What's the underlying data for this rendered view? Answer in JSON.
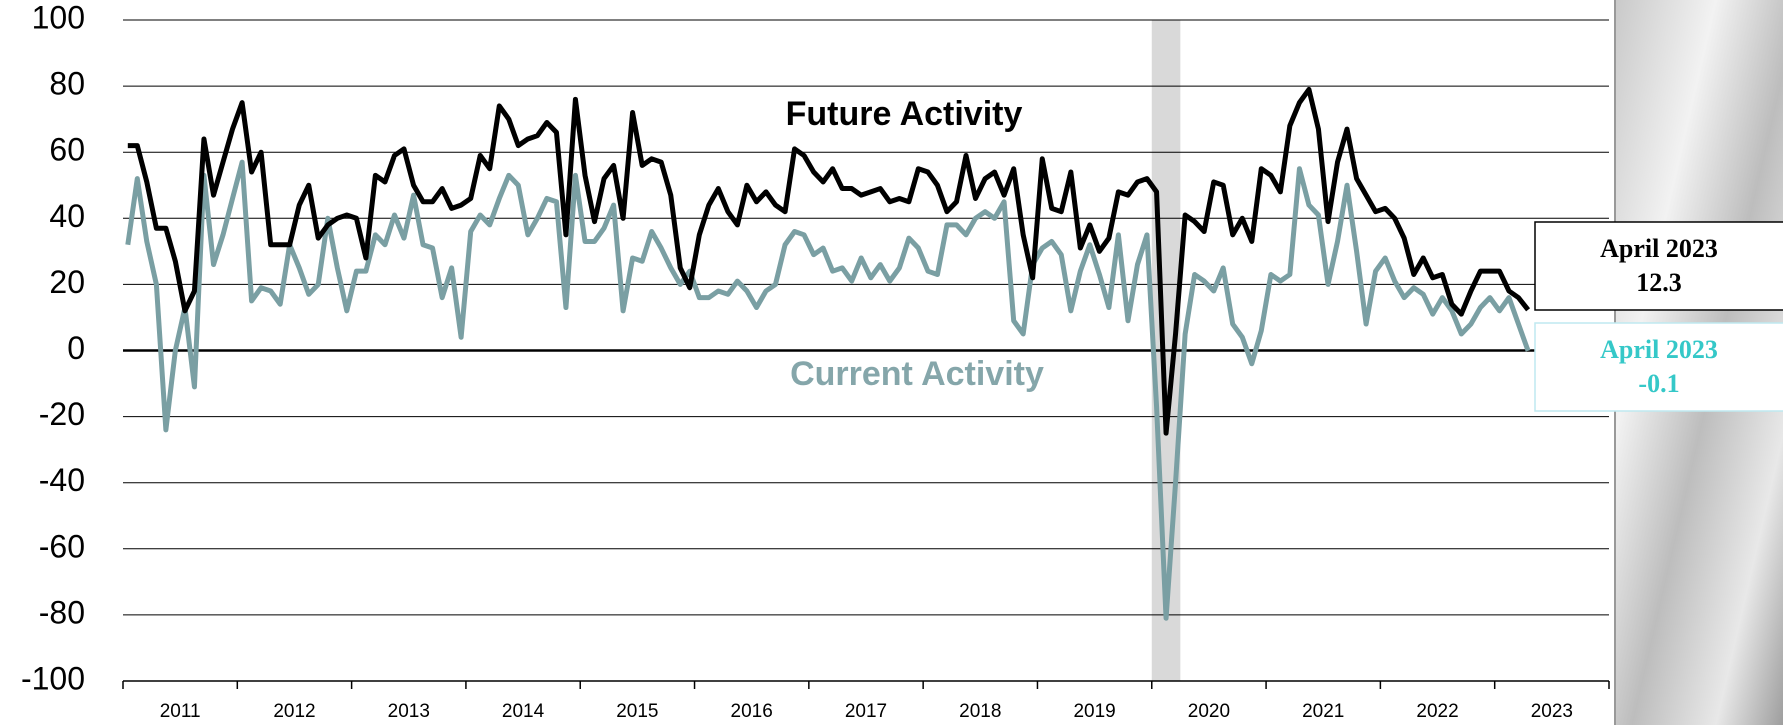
{
  "chart_data": {
    "type": "line",
    "x": [
      2011.042,
      2011.125,
      2011.208,
      2011.292,
      2011.375,
      2011.458,
      2011.542,
      2011.625,
      2011.708,
      2011.792,
      2011.875,
      2011.958,
      2012.042,
      2012.125,
      2012.208,
      2012.292,
      2012.375,
      2012.458,
      2012.542,
      2012.625,
      2012.708,
      2012.792,
      2012.875,
      2012.958,
      2013.042,
      2013.125,
      2013.208,
      2013.292,
      2013.375,
      2013.458,
      2013.542,
      2013.625,
      2013.708,
      2013.792,
      2013.875,
      2013.958,
      2014.042,
      2014.125,
      2014.208,
      2014.292,
      2014.375,
      2014.458,
      2014.542,
      2014.625,
      2014.708,
      2014.792,
      2014.875,
      2014.958,
      2015.042,
      2015.125,
      2015.208,
      2015.292,
      2015.375,
      2015.458,
      2015.542,
      2015.625,
      2015.708,
      2015.792,
      2015.875,
      2015.958,
      2016.042,
      2016.125,
      2016.208,
      2016.292,
      2016.375,
      2016.458,
      2016.542,
      2016.625,
      2016.708,
      2016.792,
      2016.875,
      2016.958,
      2017.042,
      2017.125,
      2017.208,
      2017.292,
      2017.375,
      2017.458,
      2017.542,
      2017.625,
      2017.708,
      2017.792,
      2017.875,
      2017.958,
      2018.042,
      2018.125,
      2018.208,
      2018.292,
      2018.375,
      2018.458,
      2018.542,
      2018.625,
      2018.708,
      2018.792,
      2018.875,
      2018.958,
      2019.042,
      2019.125,
      2019.208,
      2019.292,
      2019.375,
      2019.458,
      2019.542,
      2019.625,
      2019.708,
      2019.792,
      2019.875,
      2019.958,
      2020.042,
      2020.125,
      2020.208,
      2020.292,
      2020.375,
      2020.458,
      2020.542,
      2020.625,
      2020.708,
      2020.792,
      2020.875,
      2020.958,
      2021.042,
      2021.125,
      2021.208,
      2021.292,
      2021.375,
      2021.458,
      2021.542,
      2021.625,
      2021.708,
      2021.792,
      2021.875,
      2021.958,
      2022.042,
      2022.125,
      2022.208,
      2022.292,
      2022.375,
      2022.458,
      2022.542,
      2022.625,
      2022.708,
      2022.792,
      2022.875,
      2022.958,
      2023.042,
      2023.125,
      2023.208,
      2023.292
    ],
    "series": [
      {
        "name": "Future Activity",
        "color": "#000000",
        "values": [
          62,
          62,
          51,
          37,
          37,
          27,
          12,
          18,
          64,
          47,
          57,
          67,
          75,
          54,
          60,
          32,
          32,
          32,
          44,
          50,
          34,
          38,
          40,
          41,
          40,
          28,
          53,
          51,
          59,
          61,
          50,
          45,
          45,
          49,
          43,
          44,
          46,
          59,
          55,
          74,
          70,
          62,
          64,
          65,
          69,
          66,
          35,
          76,
          53,
          39,
          52,
          56,
          40,
          72,
          56,
          58,
          57,
          47,
          25,
          19,
          35,
          44,
          49,
          42,
          38,
          50,
          45,
          48,
          44,
          42,
          61,
          59,
          54,
          51,
          55,
          49,
          49,
          47,
          48,
          49,
          45,
          46,
          45,
          55,
          54,
          50,
          42,
          45,
          59,
          46,
          52,
          54,
          47,
          55,
          35,
          22,
          58,
          43,
          42,
          54,
          31,
          38,
          30,
          34,
          48,
          47,
          51,
          52,
          48,
          -25,
          5,
          41,
          39,
          36,
          51,
          50,
          35,
          40,
          33,
          55,
          53,
          48,
          68,
          75,
          79,
          67,
          39,
          57,
          67,
          52,
          47,
          42,
          43,
          40,
          34,
          23,
          28,
          22,
          23,
          14,
          11,
          18,
          24,
          24,
          24,
          18,
          16,
          12.3
        ]
      },
      {
        "name": "Current Activity",
        "color": "#7a9fa3",
        "values": [
          32,
          52,
          33,
          20,
          -24,
          0,
          13,
          -11,
          53,
          26,
          35,
          46,
          57,
          15,
          19,
          18,
          14,
          32,
          25,
          17,
          20,
          40,
          25,
          12,
          24,
          24,
          35,
          32,
          41,
          34,
          47,
          32,
          31,
          16,
          25,
          4,
          36,
          41,
          38,
          46,
          53,
          50,
          35,
          40,
          46,
          45,
          13,
          53,
          33,
          33,
          37,
          44,
          12,
          28,
          27,
          36,
          31,
          25,
          20,
          24,
          16,
          16,
          18,
          17,
          21,
          18,
          13,
          18,
          20,
          32,
          36,
          35,
          29,
          31,
          24,
          25,
          21,
          28,
          22,
          26,
          21,
          25,
          34,
          31,
          24,
          23,
          38,
          38,
          35,
          40,
          42,
          40,
          45,
          9,
          5,
          26,
          31,
          33,
          29,
          12,
          24,
          32,
          23,
          13,
          35,
          9,
          26,
          35,
          -17,
          -81,
          -40,
          5,
          23,
          21,
          18,
          25,
          8,
          4,
          -4,
          6,
          23,
          21,
          23,
          55,
          44,
          41,
          20,
          33,
          50,
          30,
          8,
          24,
          28,
          21,
          16,
          19,
          17,
          11,
          16,
          12,
          5,
          8,
          13,
          16,
          12,
          16,
          8,
          -0.1
        ]
      }
    ],
    "xlim": [
      2011,
      2024
    ],
    "xticks": [
      {
        "value": 2011.5,
        "label": "2011"
      },
      {
        "value": 2012.5,
        "label": "2012"
      },
      {
        "value": 2013.5,
        "label": "2013"
      },
      {
        "value": 2014.5,
        "label": "2014"
      },
      {
        "value": 2015.5,
        "label": "2015"
      },
      {
        "value": 2016.5,
        "label": "2016"
      },
      {
        "value": 2017.5,
        "label": "2017"
      },
      {
        "value": 2018.5,
        "label": "2018"
      },
      {
        "value": 2019.5,
        "label": "2019"
      },
      {
        "value": 2020.5,
        "label": "2020"
      },
      {
        "value": 2021.5,
        "label": "2021"
      },
      {
        "value": 2022.5,
        "label": "2022"
      },
      {
        "value": 2023.5,
        "label": "2023"
      }
    ],
    "ylim": [
      -100,
      100
    ],
    "yticks": [
      -100,
      -80,
      -60,
      -40,
      -20,
      0,
      20,
      40,
      60,
      80,
      100
    ],
    "grid": true,
    "shade_x": [
      2020.0,
      2020.25
    ],
    "callouts": [
      {
        "label": "April 2023",
        "value": 12.3,
        "color": "#000000"
      },
      {
        "label": "April 2023",
        "value": -0.1,
        "color": "#35c8c8"
      }
    ]
  }
}
